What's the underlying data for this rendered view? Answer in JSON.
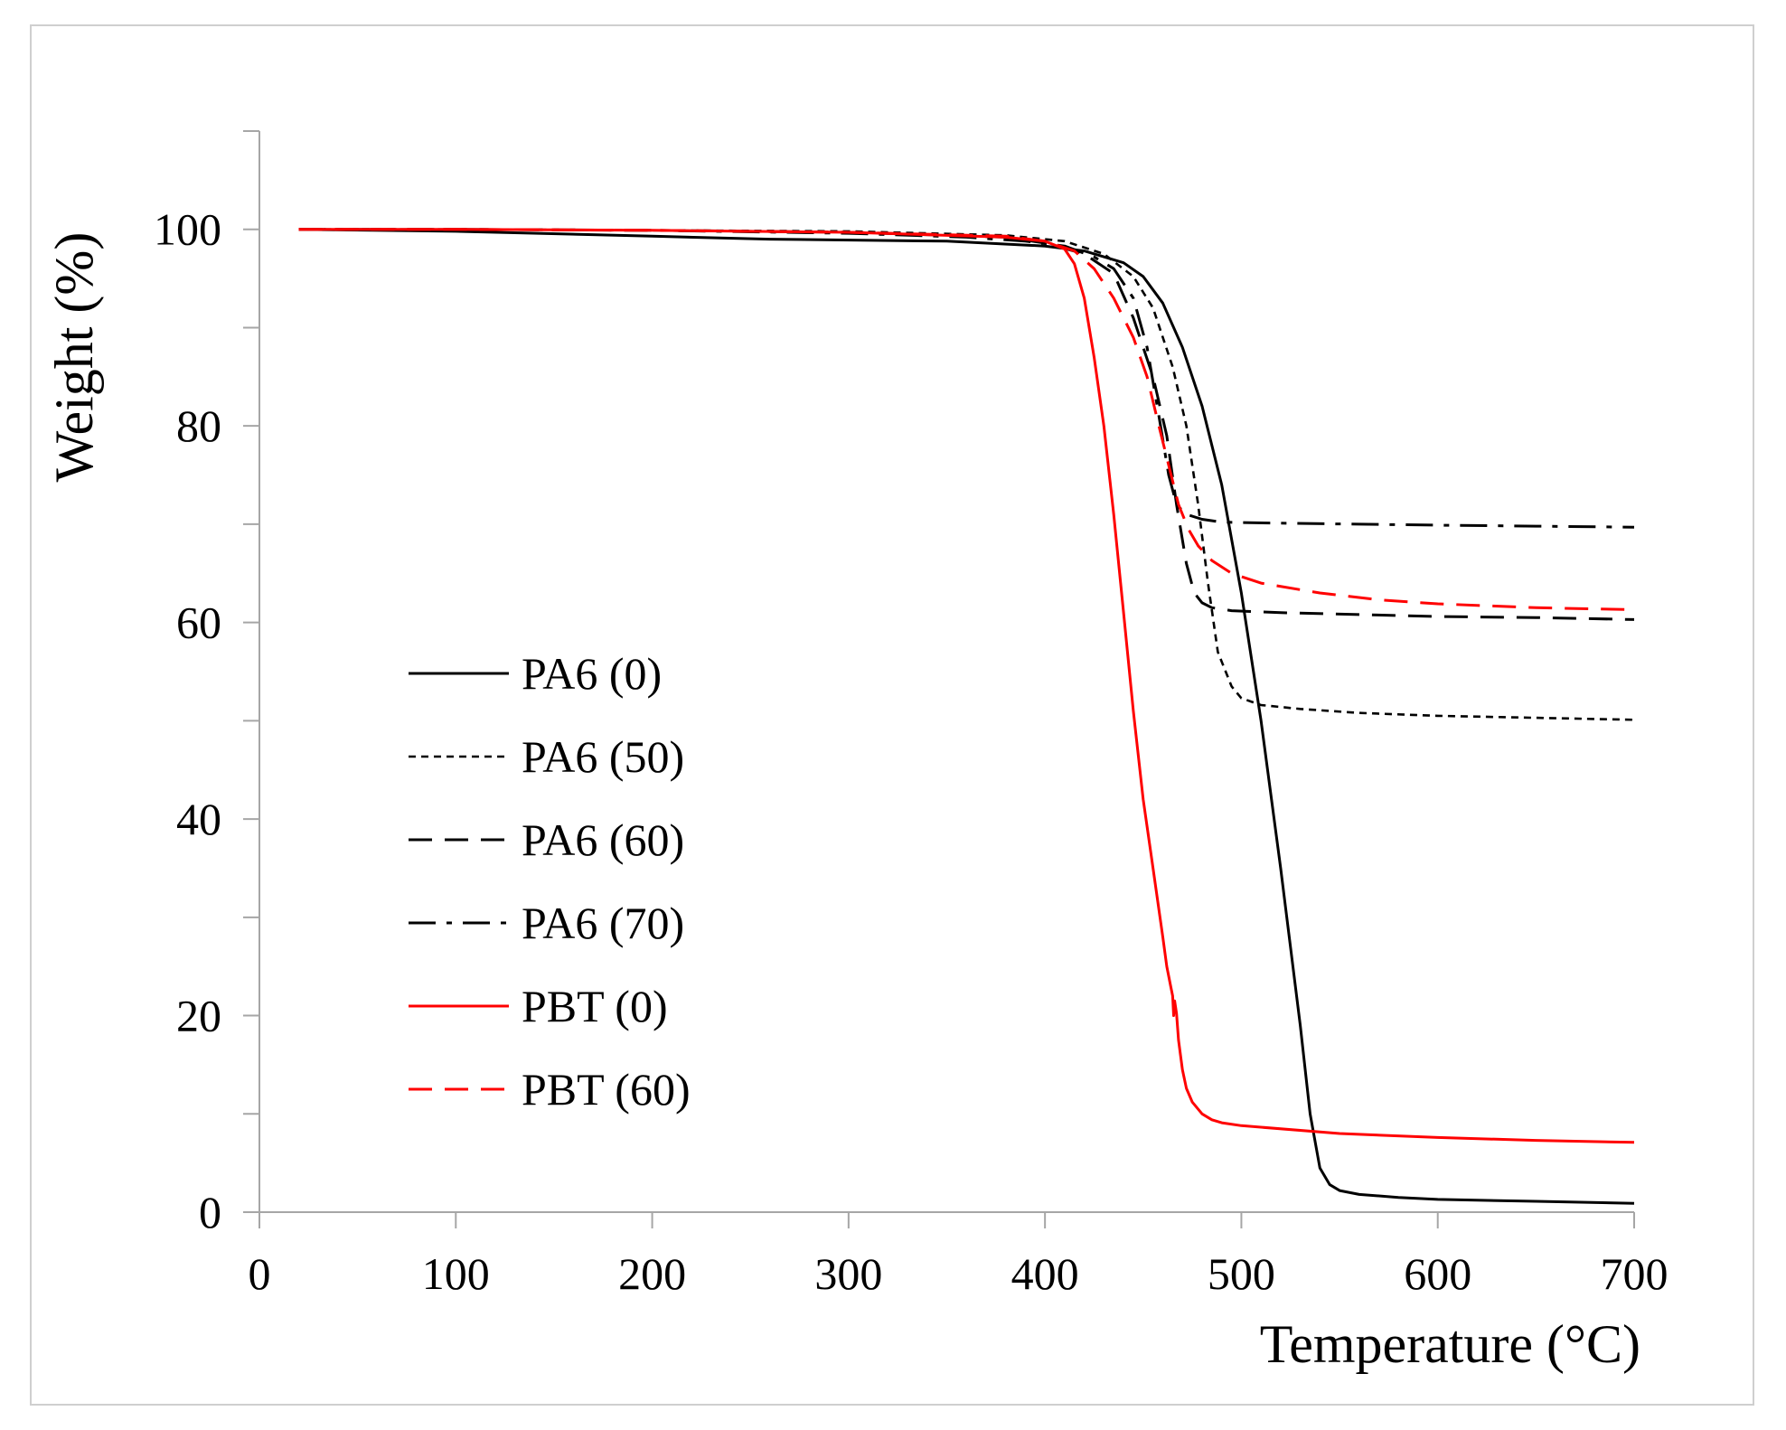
{
  "chart_data": {
    "type": "line",
    "title": "",
    "xlabel": "Temperature (°C)",
    "ylabel": "Weight (%)",
    "xlim": [
      0,
      700
    ],
    "ylim": [
      0,
      110
    ],
    "xticks": [
      0,
      100,
      200,
      300,
      400,
      500,
      600,
      700
    ],
    "yticks": [
      0,
      20,
      40,
      60,
      80,
      100
    ],
    "grid": false,
    "legend_position": "left-middle",
    "series": [
      {
        "name": "PA6 (0)",
        "color": "#000000",
        "dash": "solid",
        "x": [
          20,
          100,
          200,
          260,
          350,
          400,
          420,
          440,
          450,
          460,
          470,
          480,
          490,
          500,
          510,
          520,
          530,
          535,
          540,
          545,
          550,
          560,
          580,
          600,
          650,
          700
        ],
        "y": [
          100,
          99.8,
          99.3,
          99.0,
          98.8,
          98.3,
          97.8,
          96.6,
          95.2,
          92.5,
          88.0,
          82.0,
          74.0,
          63.0,
          50.0,
          35.0,
          19.0,
          10.0,
          4.5,
          2.8,
          2.2,
          1.8,
          1.5,
          1.3,
          1.1,
          0.9
        ]
      },
      {
        "name": "PA6 (50)",
        "color": "#000000",
        "dash": "dotted",
        "x": [
          20,
          100,
          200,
          300,
          380,
          410,
          430,
          445,
          455,
          465,
          472,
          478,
          483,
          488,
          495,
          500,
          510,
          530,
          560,
          600,
          650,
          700
        ],
        "y": [
          100,
          100,
          99.9,
          99.8,
          99.4,
          98.8,
          97.5,
          95.2,
          92.0,
          86.0,
          80.0,
          72.0,
          64.0,
          57.0,
          53.5,
          52.3,
          51.6,
          51.2,
          50.8,
          50.5,
          50.3,
          50.1
        ]
      },
      {
        "name": "PA6 (60)",
        "color": "#000000",
        "dash": "dashed",
        "x": [
          20,
          100,
          200,
          300,
          380,
          400,
          420,
          435,
          445,
          455,
          462,
          467,
          472,
          476,
          480,
          485,
          495,
          520,
          560,
          600,
          650,
          700
        ],
        "y": [
          100,
          100,
          99.9,
          99.7,
          99.2,
          98.6,
          97.5,
          95.5,
          91.0,
          85.0,
          79.0,
          72.0,
          66.0,
          63.0,
          62.0,
          61.5,
          61.2,
          61.0,
          60.8,
          60.6,
          60.5,
          60.3
        ]
      },
      {
        "name": "PA6 (70)",
        "color": "#000000",
        "dash": "dashdot",
        "x": [
          20,
          100,
          200,
          300,
          360,
          390,
          410,
          425,
          435,
          445,
          452,
          458,
          463,
          467,
          472,
          480,
          490,
          520,
          560,
          600,
          650,
          700
        ],
        "y": [
          100,
          100,
          99.9,
          99.6,
          99.2,
          98.8,
          98.3,
          97.2,
          96.0,
          93.0,
          88.0,
          81.0,
          75.0,
          72.0,
          71.0,
          70.5,
          70.2,
          70.1,
          70.0,
          69.9,
          69.8,
          69.7
        ]
      },
      {
        "name": "PBT (0)",
        "color": "#ff0000",
        "dash": "solid",
        "x": [
          20,
          100,
          200,
          300,
          380,
          400,
          410,
          415,
          420,
          425,
          430,
          435,
          440,
          445,
          450,
          455,
          460,
          462,
          464,
          465,
          465.5,
          466,
          467,
          468,
          470,
          472,
          475,
          480,
          485,
          490,
          500,
          550,
          600,
          650,
          700
        ],
        "y": [
          100,
          100,
          99.9,
          99.7,
          99.2,
          98.8,
          98.0,
          96.5,
          93.0,
          87.0,
          80.0,
          71.0,
          61.0,
          51.0,
          42.0,
          35.0,
          28.0,
          25.0,
          23.0,
          22.0,
          20.0,
          21.5,
          20.2,
          17.5,
          14.5,
          12.6,
          11.2,
          10.0,
          9.4,
          9.1,
          8.8,
          8.0,
          7.6,
          7.3,
          7.1
        ]
      },
      {
        "name": "PBT (60)",
        "color": "#ff0000",
        "dash": "dashed",
        "x": [
          20,
          100,
          200,
          300,
          380,
          400,
          415,
          425,
          435,
          445,
          452,
          458,
          463,
          468,
          473,
          478,
          485,
          495,
          510,
          540,
          570,
          600,
          650,
          700
        ],
        "y": [
          100,
          100,
          99.9,
          99.7,
          99.3,
          98.8,
          97.8,
          96.0,
          93.0,
          89.0,
          85.0,
          80.0,
          76.0,
          72.0,
          69.5,
          67.8,
          66.3,
          65.0,
          64.0,
          63.0,
          62.3,
          61.9,
          61.5,
          61.3
        ]
      }
    ]
  }
}
